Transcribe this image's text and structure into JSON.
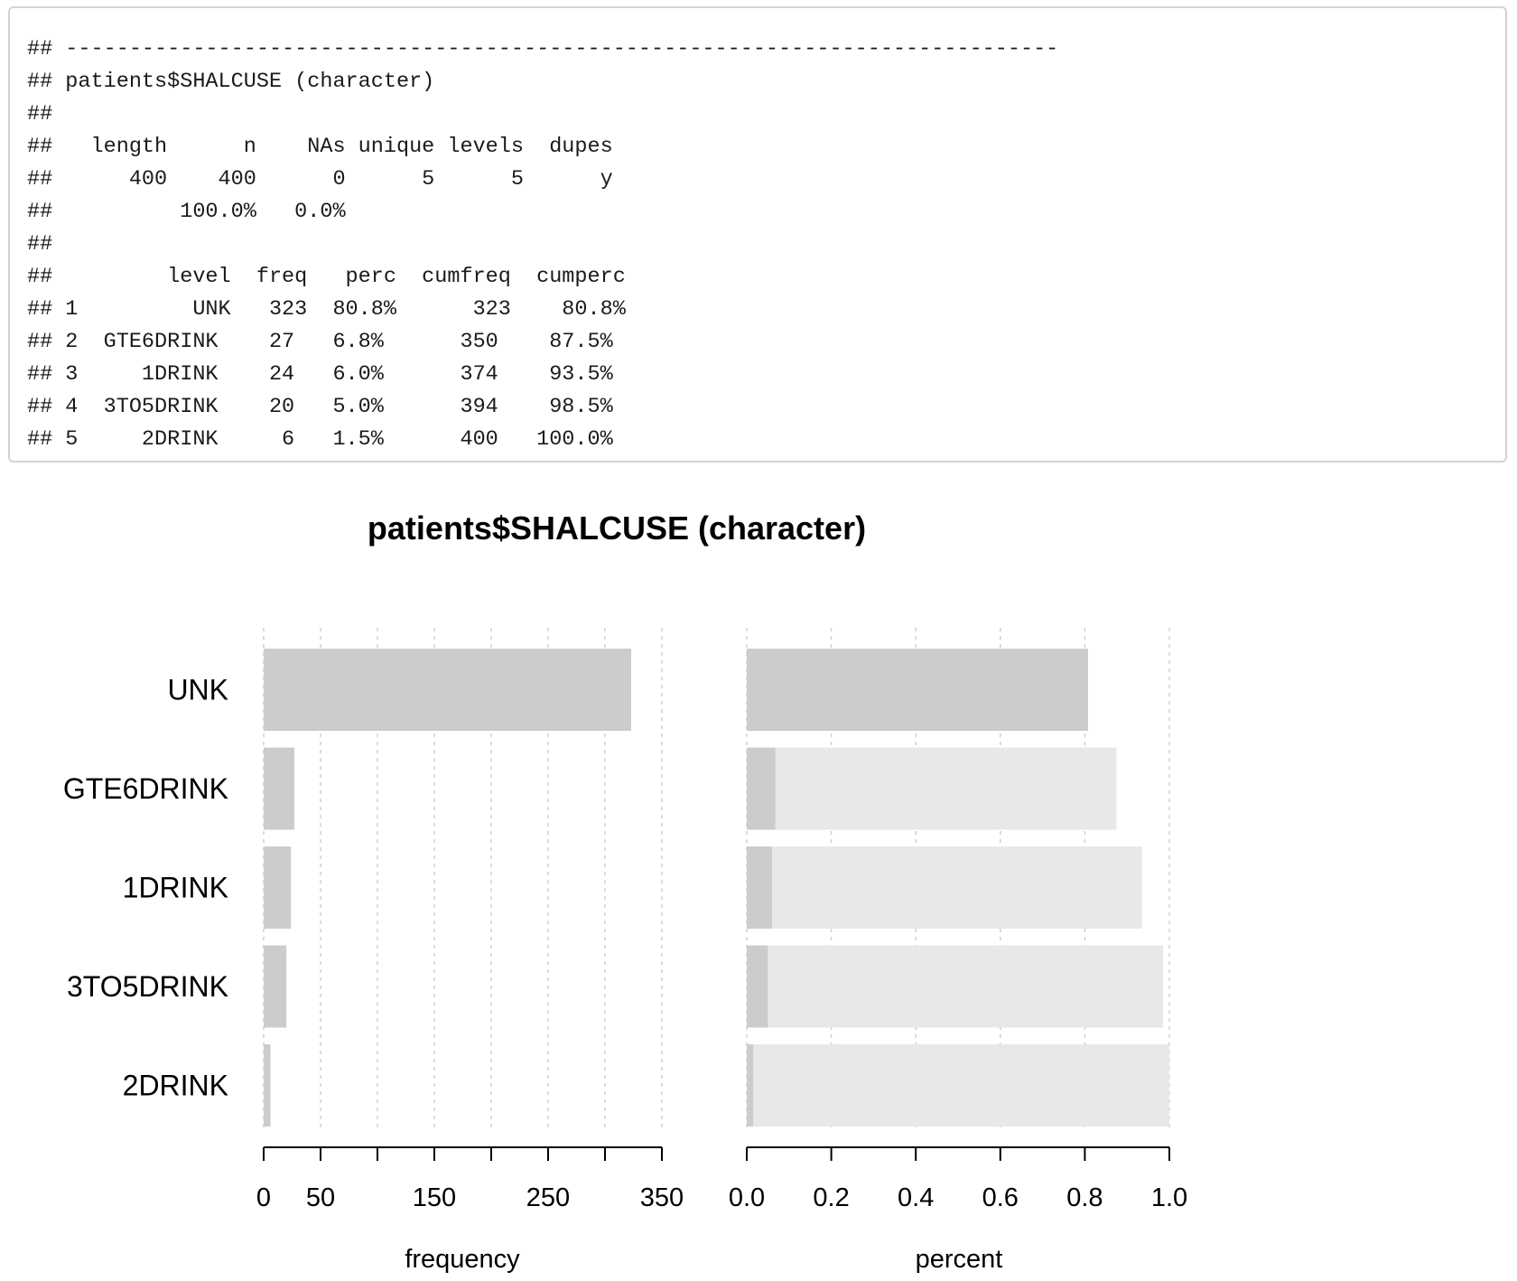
{
  "console": {
    "lines": [
      "## ------------------------------------------------------------------------------",
      "## patients$SHALCUSE (character)",
      "##",
      "##   length      n    NAs unique levels  dupes",
      "##      400    400      0      5      5      y",
      "##          100.0%   0.0%",
      "##",
      "##         level  freq   perc  cumfreq  cumperc",
      "## 1         UNK   323  80.8%      323    80.8%",
      "## 2  GTE6DRINK    27   6.8%      350    87.5%",
      "## 3     1DRINK    24   6.0%      374    93.5%",
      "## 4  3TO5DRINK    20   5.0%      394    98.5%",
      "## 5     2DRINK     6   1.5%      400   100.0%"
    ]
  },
  "chart_data": {
    "type": "bar",
    "title": "patients$SHALCUSE (character)",
    "categories": [
      "UNK",
      "GTE6DRINK",
      "1DRINK",
      "3TO5DRINK",
      "2DRINK"
    ],
    "series": [
      {
        "name": "frequency",
        "values": [
          323,
          27,
          24,
          20,
          6
        ]
      },
      {
        "name": "percent",
        "values": [
          0.8075,
          0.0675,
          0.06,
          0.05,
          0.015
        ]
      },
      {
        "name": "cumulative percent",
        "values": [
          0.8075,
          0.875,
          0.935,
          0.985,
          1.0
        ]
      }
    ],
    "frequency_axis": {
      "xlabel": "frequency",
      "xlim": [
        0,
        350
      ],
      "ticks": [
        0,
        50,
        100,
        150,
        200,
        250,
        300,
        350
      ],
      "tick_labels": [
        "0",
        "50",
        "",
        "150",
        "",
        "250",
        "",
        "350"
      ]
    },
    "percent_axis": {
      "xlabel": "percent",
      "xlim": [
        0,
        1.0
      ],
      "ticks": [
        0,
        0.2,
        0.4,
        0.6,
        0.8,
        1.0
      ],
      "tick_labels": [
        "0.0",
        "0.2",
        "0.4",
        "0.6",
        "0.8",
        "1.0"
      ]
    },
    "grid": true,
    "colors": {
      "bar": "#cccccc",
      "cumulative_bar": "#e8e8e8",
      "grid": "#cfcfcf",
      "axis": "#000000"
    }
  }
}
